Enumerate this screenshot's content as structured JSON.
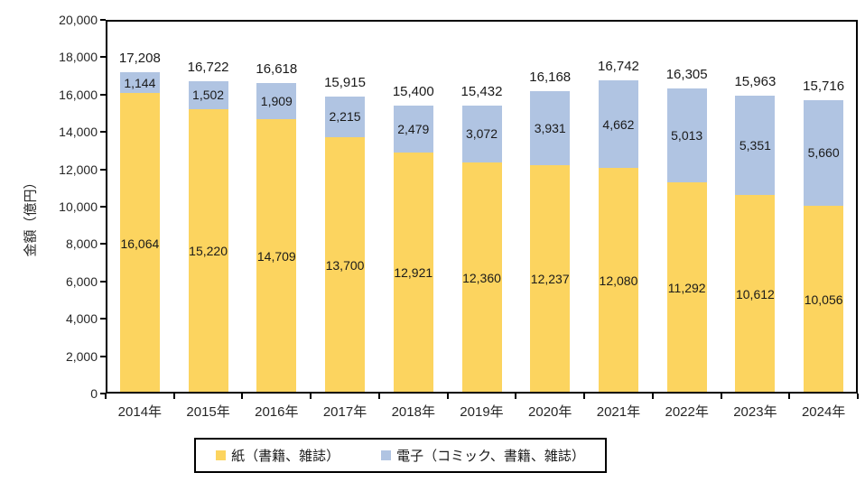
{
  "chart_data": {
    "type": "bar",
    "stacked": true,
    "title": "",
    "xlabel": "",
    "ylabel": "金額（億円）",
    "ylim": [
      0,
      20000
    ],
    "ytick_step": 2000,
    "grid": false,
    "legend_position": "bottom",
    "categories": [
      "2014年",
      "2015年",
      "2016年",
      "2017年",
      "2018年",
      "2019年",
      "2020年",
      "2021年",
      "2022年",
      "2023年",
      "2024年"
    ],
    "series": [
      {
        "name": "紙（書籍、雑誌）",
        "color": "#FCD45F",
        "values": [
          16064,
          15220,
          14709,
          13700,
          12921,
          12360,
          12237,
          12080,
          11292,
          10612,
          10056
        ]
      },
      {
        "name": "電子（コミック、書籍、雑誌）",
        "color": "#B0C4E2",
        "values": [
          1144,
          1502,
          1909,
          2215,
          2479,
          3072,
          3931,
          4662,
          5013,
          5351,
          5660
        ]
      }
    ],
    "totals": [
      17208,
      16722,
      16618,
      15915,
      15400,
      15432,
      16168,
      16742,
      16305,
      15963,
      15716
    ]
  },
  "colors": {
    "axis": "#000000",
    "label_text": "#1a1a1a",
    "background": "#ffffff"
  }
}
